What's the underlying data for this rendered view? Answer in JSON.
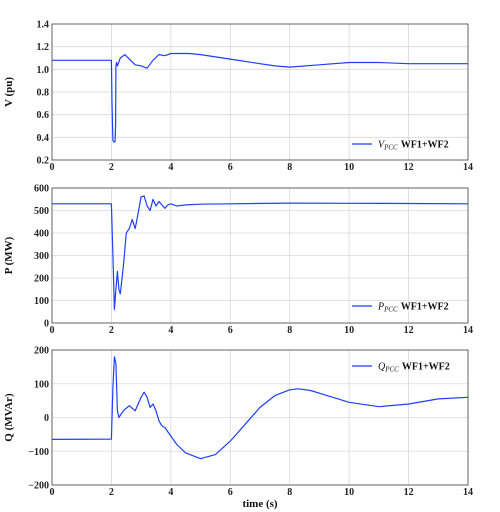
{
  "chart_data": [
    {
      "type": "line",
      "ylabel": "V (pu)",
      "xlim": [
        0,
        14
      ],
      "ylim": [
        0.2,
        1.4
      ],
      "xticks": [
        "0",
        "2",
        "4",
        "6",
        "8",
        "10",
        "12",
        "14"
      ],
      "yticks": [
        "0.2",
        "0.4",
        "0.6",
        "0.8",
        "1.0",
        "1.2",
        "1.4"
      ],
      "grid": true,
      "legend_position": "bottom-right",
      "legend": {
        "sym": "V",
        "sub": "PCC",
        "rest": "WF1+WF2"
      },
      "series": [
        {
          "color": "#1f3fff",
          "x": [
            0,
            2.0,
            2.02,
            2.05,
            2.08,
            2.12,
            2.14,
            2.15,
            2.17,
            2.2,
            2.3,
            2.45,
            2.6,
            2.8,
            3.0,
            3.2,
            3.4,
            3.6,
            3.8,
            4.0,
            4.3,
            4.6,
            5.0,
            6.0,
            7.0,
            7.5,
            8.0,
            9.0,
            10.0,
            10.5,
            11.0,
            12.0,
            13.0,
            14.0
          ],
          "y": [
            1.08,
            1.08,
            0.7,
            0.37,
            0.36,
            0.36,
            0.5,
            1.02,
            1.06,
            1.03,
            1.1,
            1.13,
            1.09,
            1.04,
            1.03,
            1.01,
            1.08,
            1.13,
            1.12,
            1.14,
            1.14,
            1.14,
            1.13,
            1.09,
            1.05,
            1.03,
            1.02,
            1.04,
            1.06,
            1.06,
            1.06,
            1.05,
            1.05,
            1.05
          ]
        }
      ]
    },
    {
      "type": "line",
      "ylabel": "P (MW)",
      "xlim": [
        0,
        14
      ],
      "ylim": [
        0,
        600
      ],
      "xticks": [
        "0",
        "2",
        "4",
        "6",
        "8",
        "10",
        "12",
        "14"
      ],
      "yticks": [
        "0",
        "100",
        "200",
        "300",
        "400",
        "500",
        "600"
      ],
      "grid": true,
      "legend_position": "bottom-right",
      "legend": {
        "sym": "P",
        "sub": "PCC",
        "rest": "WF1+WF2"
      },
      "series": [
        {
          "color": "#1f3fff",
          "x": [
            0,
            2.0,
            2.05,
            2.1,
            2.15,
            2.2,
            2.25,
            2.3,
            2.4,
            2.5,
            2.6,
            2.7,
            2.8,
            2.9,
            3.0,
            3.1,
            3.2,
            3.3,
            3.4,
            3.5,
            3.6,
            3.7,
            3.8,
            3.9,
            4.0,
            4.2,
            4.5,
            5.0,
            6.0,
            8.0,
            10.0,
            12.0,
            14.0
          ],
          "y": [
            530,
            530,
            300,
            60,
            150,
            230,
            150,
            130,
            250,
            400,
            420,
            460,
            420,
            490,
            560,
            565,
            520,
            500,
            550,
            520,
            540,
            525,
            510,
            525,
            530,
            520,
            525,
            528,
            530,
            533,
            532,
            531,
            530
          ]
        }
      ]
    },
    {
      "type": "line",
      "ylabel": "Q (MVAr)",
      "xlabel": "time (s)",
      "xlim": [
        0,
        14
      ],
      "ylim": [
        -200,
        200
      ],
      "xticks": [
        "0",
        "2",
        "4",
        "6",
        "8",
        "10",
        "12",
        "14"
      ],
      "yticks": [
        "−200",
        "−100",
        "0",
        "100",
        "200"
      ],
      "grid": true,
      "legend_position": "top-right",
      "legend": {
        "sym": "Q",
        "sub": "PCC",
        "rest": "WF1+WF2"
      },
      "series": [
        {
          "color": "#1f3fff",
          "x": [
            0,
            2.0,
            2.05,
            2.1,
            2.15,
            2.2,
            2.25,
            2.4,
            2.6,
            2.8,
            3.0,
            3.1,
            3.2,
            3.3,
            3.4,
            3.5,
            3.6,
            3.7,
            3.8,
            4.0,
            4.2,
            4.5,
            5.0,
            5.5,
            6.0,
            6.5,
            7.0,
            7.5,
            8.0,
            8.3,
            8.7,
            9.0,
            10.0,
            11.0,
            12.0,
            13.0,
            14.0
          ],
          "y": [
            -65,
            -64,
            90,
            180,
            160,
            20,
            0,
            20,
            35,
            20,
            60,
            75,
            60,
            30,
            40,
            20,
            -10,
            -25,
            -30,
            -55,
            -80,
            -105,
            -122,
            -110,
            -70,
            -20,
            30,
            65,
            82,
            85,
            80,
            72,
            45,
            32,
            40,
            55,
            60
          ]
        }
      ]
    }
  ]
}
